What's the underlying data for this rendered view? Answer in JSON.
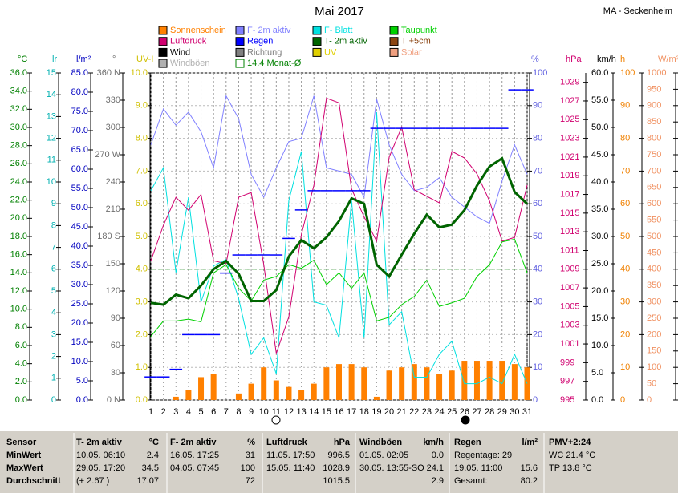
{
  "header": {
    "title": "Mai 2017",
    "station": "MA - Seckenheim"
  },
  "legend_extra": [
    {
      "label": "T +5cm",
      "color": "#8b4513"
    },
    {
      "label": "Wind",
      "color": "#000000"
    },
    {
      "label": "Richtung",
      "color": "#808080"
    },
    {
      "label": "UV",
      "color": "#e0d000"
    },
    {
      "label": "Solar",
      "color": "#f0a080"
    },
    {
      "label": "Windböen",
      "color": "#b0b0b0"
    }
  ],
  "chart_data": {
    "type": "line",
    "x": [
      1,
      2,
      3,
      4,
      5,
      6,
      7,
      8,
      9,
      10,
      11,
      12,
      13,
      14,
      15,
      16,
      17,
      18,
      19,
      20,
      21,
      22,
      23,
      24,
      25,
      26,
      27,
      28,
      29,
      30,
      31
    ],
    "xticks": [
      1,
      2,
      3,
      4,
      5,
      6,
      7,
      8,
      9,
      10,
      11,
      12,
      13,
      14,
      15,
      16,
      17,
      18,
      19,
      20,
      21,
      22,
      23,
      24,
      25,
      26,
      27,
      28,
      29,
      30,
      31
    ],
    "grid": true,
    "axes": [
      {
        "unit": "°C",
        "color": "#008000",
        "lim": [
          0,
          36
        ],
        "ticks": [
          {
            "value": 0,
            "label": "0.0"
          },
          {
            "value": 2,
            "label": "2.0"
          },
          {
            "value": 4,
            "label": "4.0"
          },
          {
            "value": 6,
            "label": "6.0"
          },
          {
            "value": 8,
            "label": "8.0"
          },
          {
            "value": 10,
            "label": "10.0"
          },
          {
            "value": 12,
            "label": "12.0"
          },
          {
            "value": 14,
            "label": "14.0"
          },
          {
            "value": 16,
            "label": "16.0"
          },
          {
            "value": 18,
            "label": "18.0"
          },
          {
            "value": 20,
            "label": "20.0"
          },
          {
            "value": 22,
            "label": "22.0"
          },
          {
            "value": 24,
            "label": "24.0"
          },
          {
            "value": 26,
            "label": "26.0"
          },
          {
            "value": 28,
            "label": "28.0"
          },
          {
            "value": 30,
            "label": "30.0"
          },
          {
            "value": 32,
            "label": "32.0"
          },
          {
            "value": 34,
            "label": "34.0"
          },
          {
            "value": 36,
            "label": "36.0"
          }
        ]
      },
      {
        "unit": "lr",
        "color": "#00b0b0",
        "lim": [
          0,
          15
        ],
        "ticks": [
          0,
          1,
          2,
          3,
          4,
          5,
          6,
          7,
          8,
          9,
          10,
          11,
          12,
          13,
          14,
          15
        ]
      },
      {
        "unit": "l/m²",
        "color": "#0000c0",
        "lim": [
          0,
          85
        ],
        "ticks": [
          {
            "value": 0,
            "label": "0.0"
          },
          {
            "value": 5,
            "label": "5.0"
          },
          {
            "value": 10,
            "label": "10.0"
          },
          {
            "value": 15,
            "label": "15.0"
          },
          {
            "value": 20,
            "label": "20.0"
          },
          {
            "value": 25,
            "label": "25.0"
          },
          {
            "value": 30,
            "label": "30.0"
          },
          {
            "value": 35,
            "label": "35.0"
          },
          {
            "value": 40,
            "label": "40.0"
          },
          {
            "value": 45,
            "label": "45.0"
          },
          {
            "value": 50,
            "label": "50.0"
          },
          {
            "value": 55,
            "label": "55.0"
          },
          {
            "value": 60,
            "label": "60.0"
          },
          {
            "value": 65,
            "label": "65.0"
          },
          {
            "value": 70,
            "label": "70.0"
          },
          {
            "value": 75,
            "label": "75.0"
          },
          {
            "value": 80,
            "label": "80.0"
          },
          {
            "value": 85,
            "label": "85.0"
          }
        ]
      },
      {
        "unit": "°",
        "color": "#707070",
        "lim": [
          0,
          360
        ],
        "ticks": [
          {
            "value": 0,
            "label": "0 N"
          },
          30,
          60,
          90,
          120,
          150,
          {
            "value": 180,
            "label": "180 S"
          },
          210,
          240,
          {
            "value": 270,
            "label": "270 W"
          },
          300,
          330,
          {
            "value": 360,
            "label": "360 N"
          }
        ]
      },
      {
        "unit": "UV-I",
        "color": "#d0c000",
        "lim": [
          0,
          10
        ],
        "ticks": [
          {
            "value": 0,
            "label": "0.0"
          },
          {
            "value": 1,
            "label": "1.0"
          },
          {
            "value": 2,
            "label": "2.0"
          },
          {
            "value": 3,
            "label": "3.0"
          },
          {
            "value": 4,
            "label": "4.0"
          },
          {
            "value": 5,
            "label": "5.0"
          },
          {
            "value": 6,
            "label": "6.0"
          },
          {
            "value": 7,
            "label": "7.0"
          },
          {
            "value": 8,
            "label": "8.0"
          },
          {
            "value": 9,
            "label": "9.0"
          },
          {
            "value": 10,
            "label": "10.0"
          }
        ]
      },
      {
        "unit": "%",
        "color": "#6060e0",
        "lim": [
          0,
          100
        ],
        "ticks": [
          0,
          10,
          20,
          30,
          40,
          50,
          60,
          70,
          80,
          90,
          100
        ]
      },
      {
        "unit": "hPa",
        "color": "#d0006f",
        "lim": [
          995,
          1030
        ],
        "ticks": [
          995,
          997,
          999,
          1001,
          1003,
          1005,
          1007,
          1009,
          1011,
          1013,
          1015,
          1017,
          1019,
          1021,
          1023,
          1025,
          1027,
          1029
        ]
      },
      {
        "unit": "km/h",
        "color": "#000000",
        "lim": [
          0,
          60
        ],
        "ticks": [
          {
            "value": 0,
            "label": "0.0"
          },
          {
            "value": 5,
            "label": "5.0"
          },
          {
            "value": 10,
            "label": "10.0"
          },
          {
            "value": 15,
            "label": "15.0"
          },
          {
            "value": 20,
            "label": "20.0"
          },
          {
            "value": 25,
            "label": "25.0"
          },
          {
            "value": 30,
            "label": "30.0"
          },
          {
            "value": 35,
            "label": "35.0"
          },
          {
            "value": 40,
            "label": "40.0"
          },
          {
            "value": 45,
            "label": "45.0"
          },
          {
            "value": 50,
            "label": "50.0"
          },
          {
            "value": 55,
            "label": "55.0"
          },
          {
            "value": 60,
            "label": "60.0"
          }
        ]
      },
      {
        "unit": "h",
        "color": "#f08000",
        "lim": [
          0,
          100
        ],
        "ticks": [
          0,
          10,
          20,
          30,
          40,
          50,
          60,
          70,
          80,
          90,
          100
        ]
      },
      {
        "unit": "W/m²",
        "color": "#f09060",
        "lim": [
          0,
          1000
        ],
        "ticks": [
          0,
          50,
          100,
          150,
          200,
          250,
          300,
          350,
          400,
          450,
          500,
          550,
          600,
          650,
          700,
          750,
          800,
          850,
          900,
          950,
          1000
        ]
      }
    ],
    "series": [
      {
        "name": "Sonnenschein",
        "color": "#ff8000",
        "axis": "h",
        "kind": "bar",
        "values": [
          0,
          0,
          1,
          3,
          7,
          8,
          0,
          2,
          5,
          10,
          6,
          4,
          3,
          5,
          10,
          11,
          11,
          10,
          1,
          9,
          10,
          11,
          10,
          8,
          9,
          12,
          12,
          12,
          12,
          11,
          10
        ]
      },
      {
        "name": "F- 2m aktiv",
        "color": "#8080ff",
        "axis": "%",
        "kind": "line",
        "values": [
          78,
          89,
          84,
          88,
          82,
          71,
          93,
          86,
          69,
          62,
          71,
          79,
          80,
          93,
          71,
          70,
          69,
          62,
          92,
          78,
          69,
          64,
          65,
          68,
          62,
          59,
          56,
          54,
          67,
          78,
          69
        ]
      },
      {
        "name": "F- Blatt",
        "color": "#00e0e0",
        "axis": "%",
        "kind": "line",
        "values": [
          64,
          71,
          39,
          62,
          30,
          41,
          43,
          31,
          14,
          19,
          8,
          61,
          76,
          30,
          29,
          19,
          61,
          19,
          88,
          23,
          27,
          7,
          7,
          14,
          18,
          5,
          5,
          7,
          5,
          14,
          5
        ]
      },
      {
        "name": "Taupunkt",
        "color": "#00d000",
        "axis": "°C",
        "kind": "line",
        "values": [
          7,
          8.7,
          8.7,
          8.9,
          8.6,
          14,
          14.9,
          12.3,
          10.9,
          13.2,
          13.6,
          14.9,
          14.5,
          15.4,
          12.7,
          14,
          12.3,
          14,
          8.7,
          9.1,
          10.5,
          11.4,
          13.2,
          10.3,
          10.7,
          11.2,
          13.6,
          14.9,
          17.4,
          17.7,
          14
        ]
      },
      {
        "name": "Luftdruck",
        "color": "#d0006f",
        "axis": "hPa",
        "kind": "line",
        "values": [
          1009.9,
          1013.7,
          1016.7,
          1015.3,
          1017,
          1009.9,
          1009.6,
          1016.7,
          1017.2,
          1009.5,
          1000,
          1003.9,
          1012.7,
          1018,
          1027.3,
          1026.8,
          1017.6,
          1014.6,
          1012,
          1021,
          1024.2,
          1017.5,
          1016.8,
          1016.1,
          1021.6,
          1020.9,
          1019.2,
          1016.3,
          1012,
          1012.4,
          1018
        ]
      },
      {
        "name": "Regen",
        "color": "#0000ff",
        "axis": "l/m²",
        "kind": "step",
        "values": [
          6,
          6,
          8,
          17,
          17,
          17,
          33,
          37.7,
          37.7,
          37.7,
          37.7,
          42,
          49.4,
          54.4,
          54.4,
          54.4,
          54.4,
          54.4,
          70.6,
          70.6,
          70.6,
          70.6,
          70.6,
          70.6,
          70.6,
          70.6,
          70.6,
          70.6,
          70.6,
          80.6,
          80.6
        ]
      },
      {
        "name": "T- 2m aktiv",
        "color": "#006400",
        "axis": "°C",
        "kind": "thick",
        "values": [
          10.7,
          10.5,
          11.6,
          11.2,
          12.6,
          14.4,
          15.3,
          13.9,
          10.9,
          10.9,
          12.1,
          15.8,
          17.6,
          16.7,
          17.9,
          19.7,
          22.2,
          21.6,
          14.9,
          13.6,
          16,
          18.3,
          20.4,
          19,
          19.3,
          20.9,
          23.6,
          25.7,
          26.6,
          22.9,
          21.6
        ]
      }
    ],
    "monthly_avg": {
      "value": 14.4,
      "label": "14.4 Monat-Ø",
      "axis": "°C",
      "color": "#008000"
    }
  },
  "table": {
    "header": [
      "Sensor",
      "T- 2m aktiv",
      "°C",
      "F- 2m aktiv",
      "%",
      "Luftdruck",
      "hPa",
      "Windböen",
      "km/h",
      "Regen",
      "l/m²",
      "PMV+2:24"
    ],
    "rows": [
      [
        "MinWert",
        "10.05.  06:10",
        "2.4",
        "16.05.  17:25",
        "31",
        "11.05.  17:50",
        "996.5",
        "01.05.  02:05",
        "0.0",
        "Regentage: 29",
        null,
        "WC 21.4 °C"
      ],
      [
        "MaxWert",
        "29.05.  17:20",
        "34.5",
        "04.05.  07:45",
        "100",
        "15.05.  11:40",
        "1028.9",
        "30.05.  13:55-SO",
        "24.1",
        "19.05.  11:00",
        "15.6",
        "TP 13.8 °C"
      ],
      [
        "Durchschnitt",
        "(+ 2.67 )",
        "17.07",
        null,
        "72",
        null,
        "1015.5",
        null,
        "2.9",
        "Gesamt:",
        "80.2",
        null
      ]
    ]
  }
}
